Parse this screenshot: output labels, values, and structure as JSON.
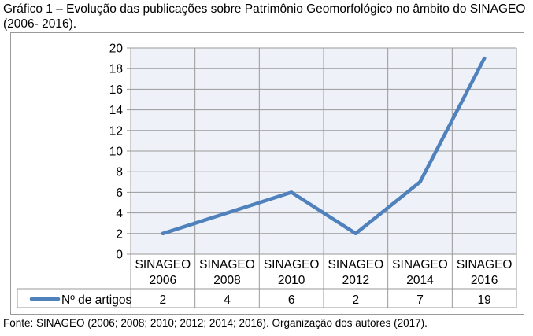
{
  "title": "Gráfico 1 – Evolução das publicações sobre Patrimônio Geomorfológico no âmbito do SINAGEO (2006- 2016).",
  "source": "Fonte: SINAGEO (2006; 2008; 2010; 2012; 2014; 2016). Organização dos autores (2017).",
  "colors": {
    "series": "#4f81bd",
    "plot_background": "#eef1f7",
    "grid": "#9a9a9a"
  },
  "chart_data": {
    "type": "line",
    "categories": [
      [
        "SINAGEO",
        "2006"
      ],
      [
        "SINAGEO",
        "2008"
      ],
      [
        "SINAGEO",
        "2010"
      ],
      [
        "SINAGEO",
        "2012"
      ],
      [
        "SINAGEO",
        "2014"
      ],
      [
        "SINAGEO",
        "2016"
      ]
    ],
    "series": [
      {
        "name": "Nº de artigos",
        "values": [
          2,
          4,
          6,
          2,
          7,
          19
        ]
      }
    ],
    "ylim": [
      0,
      20
    ],
    "yticks": [
      0,
      2,
      4,
      6,
      8,
      10,
      12,
      14,
      16,
      18,
      20
    ],
    "grid": "horizontal",
    "data_table": true,
    "legend": "data-table-left"
  }
}
